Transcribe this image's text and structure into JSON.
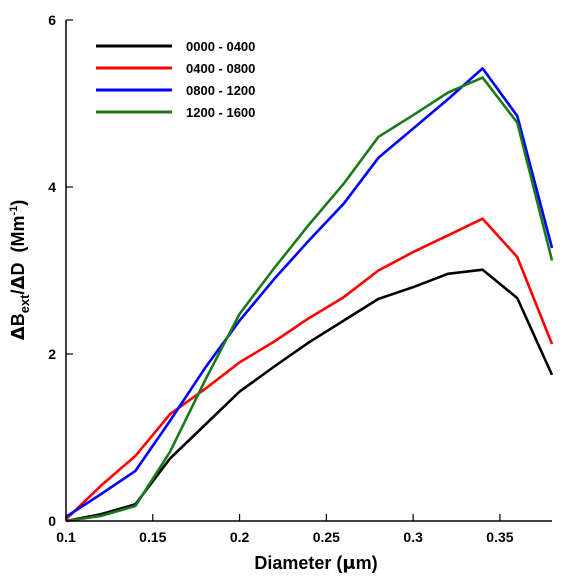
{
  "chart_data": {
    "type": "line",
    "xlabel": {
      "main": "Diameter (",
      "mu": "μ",
      "unit": "m)"
    },
    "ylabel": {
      "delta1": "Δ",
      "b": "B",
      "sub": "ext",
      "slash": "/",
      "delta2": "Δ",
      "d": "D",
      "unit_open": "(Mm",
      "exp": "-1",
      "unit_close": ")"
    },
    "xlim": [
      0.1,
      0.38
    ],
    "ylim": [
      0,
      6
    ],
    "x_ticks": [
      0.1,
      0.15,
      0.2,
      0.25,
      0.3,
      0.35
    ],
    "x_tick_labels": [
      "0.1",
      "0.15",
      "0.2",
      "0.25",
      "0.3",
      "0.35"
    ],
    "y_ticks": [
      0,
      2,
      4,
      6
    ],
    "y_tick_labels": [
      "0",
      "2",
      "4",
      "6"
    ],
    "legend_position": "top-left",
    "x": [
      0.1,
      0.12,
      0.14,
      0.16,
      0.18,
      0.2,
      0.22,
      0.24,
      0.26,
      0.28,
      0.3,
      0.32,
      0.34,
      0.36,
      0.38
    ],
    "series": [
      {
        "name": "0000 - 0400",
        "color": "#000000",
        "values": [
          0.0,
          0.08,
          0.2,
          0.75,
          1.15,
          1.55,
          1.85,
          2.14,
          2.4,
          2.66,
          2.8,
          2.96,
          3.01,
          2.67,
          1.75
        ]
      },
      {
        "name": "0400 - 0800",
        "color": "#ff0000",
        "values": [
          0.02,
          0.42,
          0.78,
          1.28,
          1.58,
          1.9,
          2.15,
          2.43,
          2.68,
          3.0,
          3.22,
          3.42,
          3.62,
          3.16,
          2.12
        ]
      },
      {
        "name": "0800 - 1200",
        "color": "#0000ff",
        "values": [
          0.05,
          0.32,
          0.6,
          1.2,
          1.83,
          2.4,
          2.9,
          3.36,
          3.8,
          4.35,
          4.7,
          5.05,
          5.42,
          4.85,
          3.27
        ]
      },
      {
        "name": "1200 - 1600",
        "color": "#1a7a1a",
        "values": [
          0.0,
          0.06,
          0.18,
          0.83,
          1.68,
          2.48,
          3.03,
          3.55,
          4.04,
          4.6,
          4.86,
          5.13,
          5.31,
          4.77,
          3.12
        ]
      }
    ]
  }
}
